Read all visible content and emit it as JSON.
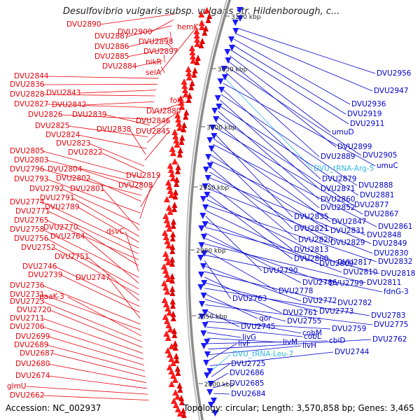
{
  "title": "Desulfovibrio vulgaris subsp. vulgaris str. Hildenborough, c...",
  "footer": {
    "accession": "Accession: NC_002937",
    "topology": "Topology: circular; Length: 3,570,858 bp; Genes: 3,465"
  },
  "colors": {
    "left_labels": "#e8000a",
    "right_labels": "#0000cc",
    "rna_labels": "#30b8e6",
    "backbone": "#8a8a8a",
    "ticks": "#2a8a2a"
  },
  "ticks": [
    "3100 kbp",
    "3050 kbp",
    "3000 kbp",
    "2950 kbp",
    "2900 kbp",
    "2850 kbp",
    "2800 kbp"
  ],
  "left_labels": [
    "DVU2890",
    "DVU2900",
    "DVU2887",
    "DVU2898",
    "DVU2886",
    "DVU2897",
    "DVU2885",
    "nikR",
    "DVU2884",
    "selA",
    "hemK",
    "DVU2844",
    "DVU2836",
    "DVU2843",
    "DVU2828",
    "DVU2842",
    "DVU2827",
    "folC",
    "DVU2826",
    "DVU2839",
    "DVU2880",
    "DVU2825",
    "DVU2846",
    "DVU2824",
    "DVU2838",
    "DVU2845",
    "DVU2823",
    "DVU2822",
    "DVU2805",
    "DVU2803",
    "DVU2804",
    "DVU2796",
    "DVU2802",
    "DVU2819",
    "DVU2793",
    "DVU2808",
    "DVU2792",
    "DVU2801",
    "DVU2791",
    "DVU2789",
    "DVU2774",
    "DVU2771",
    "DVU2765",
    "DVU2770",
    "dsvC",
    "DVU2758",
    "DVU2764",
    "DVU2756",
    "DVU2752",
    "DVU2751",
    "DVU2746",
    "DVU2739",
    "DVU2747",
    "DVU2736",
    "DVU2731",
    "paaK-3",
    "DVU2723",
    "DVU2720",
    "DVU2711",
    "DVU2706",
    "DVU2699",
    "DVU2689",
    "DVU2687",
    "DVU2680",
    "DVU2674",
    "glmU",
    "DVU2662"
  ],
  "right_labels": [
    "DVU2956",
    "DVU2947",
    "DVU2936",
    "DVU2919",
    "DVU2911",
    "umuD",
    "DVU2899",
    "DVU2905",
    "DVU2889",
    "DVU_tRNA-Arg-5",
    "umuC",
    "DVU2879",
    "DVU2888",
    "DVU2871",
    "DVU2881",
    "DVU2860",
    "DVU2877",
    "DVU2852",
    "DVU2867",
    "DVU2835",
    "DVU2847",
    "DVU2861",
    "DVU2821",
    "DVU2831",
    "DVU2848",
    "DVU2820",
    "DVU2829",
    "DVU2849",
    "DVU2813",
    "DVU2830",
    "DVU2800",
    "DVU2817",
    "DVU2832",
    "DVU2809",
    "DVU2790",
    "DVU2810",
    "DVU2818",
    "DVU2786",
    "DVU2799",
    "DVU2811",
    "DVU2778",
    "fdnG-3",
    "DVU2763",
    "DVU2772",
    "DVU2782",
    "DVU2761",
    "DVU2773",
    "DVU2783",
    "qor",
    "DVU2755",
    "DVU2775",
    "DVU2745",
    "cobM",
    "DVU2759",
    "cobL",
    "livG",
    "livM",
    "cbiD",
    "DVU2762",
    "livH",
    "livF",
    "DVU2744",
    "DVU_tRNA-Leu-7",
    "DVU2725",
    "DVU2686",
    "DVU2685",
    "DVU2684"
  ]
}
